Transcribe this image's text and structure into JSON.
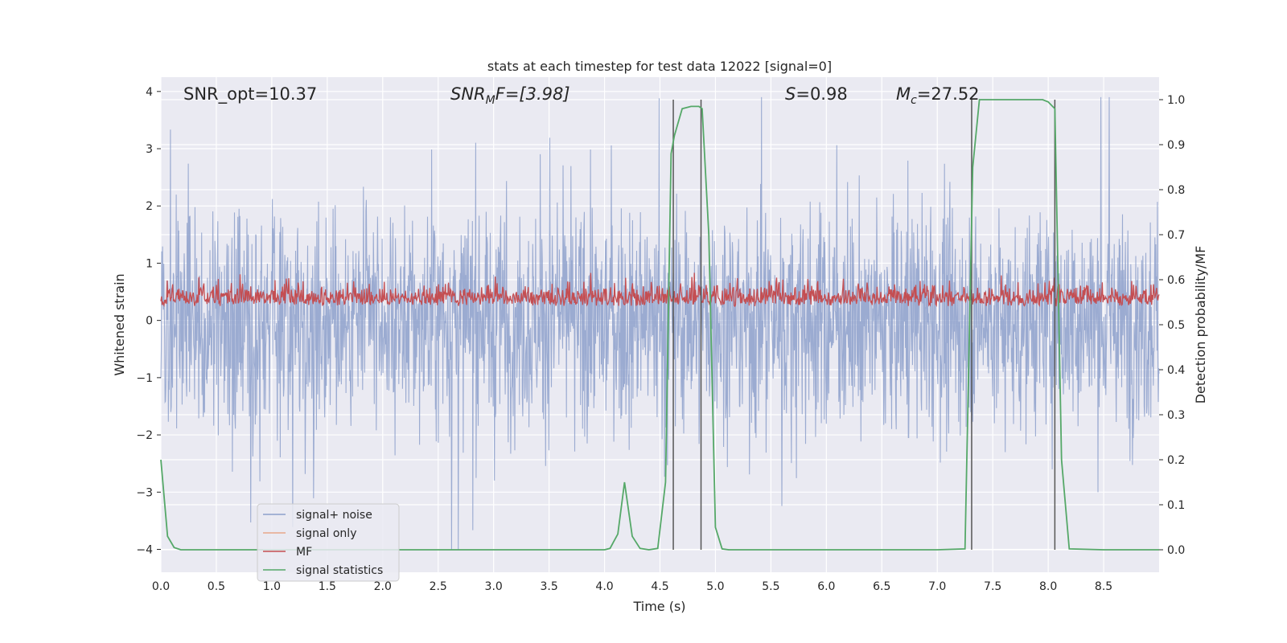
{
  "chart_data": {
    "type": "line",
    "title": "stats at each timestep for test data 12022 [signal=0]",
    "xlabel": "Time (s)",
    "ylabel": "Whitened strain",
    "y2label": "Detection probability/MF",
    "xlim": [
      0,
      9.0
    ],
    "ylim": [
      -4.4,
      4.25
    ],
    "y2lim": [
      -0.05,
      1.05
    ],
    "xticks": [
      "0.0",
      "0.5",
      "1.0",
      "1.5",
      "2.0",
      "2.5",
      "3.0",
      "3.5",
      "4.0",
      "4.5",
      "5.0",
      "5.5",
      "6.0",
      "6.5",
      "7.0",
      "7.5",
      "8.0",
      "8.5"
    ],
    "yticks": [
      "4",
      "3",
      "2",
      "1",
      "0",
      "−1",
      "−2",
      "−3",
      "−4"
    ],
    "y2ticks": [
      "1.0",
      "0.9",
      "0.8",
      "0.7",
      "0.6",
      "0.5",
      "0.4",
      "0.3",
      "0.2",
      "0.1",
      "0.0"
    ],
    "grid": true,
    "legend_position": "lower-left",
    "annotations": {
      "snr_opt": "SNR_opt=10.37",
      "snr_mf_base": "SNR",
      "snr_mf_sub": "M",
      "snr_mf_rest": "F=[3.98]",
      "s_label": "S",
      "s_rest": "=0.98",
      "mc_base": "M",
      "mc_sub": "c",
      "mc_rest": "=27.52"
    },
    "series": [
      {
        "name": "signal+ noise",
        "color": "#8da0cb",
        "axis": "left",
        "description_values": "white noise approx. within [-3.5, 3.0]"
      },
      {
        "name": "signal only",
        "color": "#e8a88a",
        "axis": "left",
        "values": []
      },
      {
        "name": "MF",
        "color": "#c44e52",
        "axis": "right",
        "range_approx": [
          0.5,
          0.62
        ]
      },
      {
        "name": "signal statistics",
        "color": "#55a868",
        "axis": "right",
        "x": [
          0.0,
          0.06,
          0.12,
          0.18,
          0.25,
          0.5,
          1.0,
          2.0,
          3.0,
          4.0,
          4.05,
          4.12,
          4.18,
          4.25,
          4.32,
          4.4,
          4.48,
          4.55,
          4.6,
          4.63,
          4.7,
          4.78,
          4.85,
          4.88,
          4.94,
          5.0,
          5.06,
          5.12,
          6.0,
          7.0,
          7.25,
          7.32,
          7.38,
          7.5,
          7.8,
          7.95,
          8.0,
          8.06,
          8.12,
          8.19,
          8.5,
          9.0
        ],
        "y": [
          0.2,
          0.03,
          0.005,
          0.0,
          0.0,
          0.0,
          0.0,
          0.0,
          0.0,
          0.0,
          0.003,
          0.035,
          0.15,
          0.03,
          0.003,
          0.0,
          0.003,
          0.15,
          0.88,
          0.92,
          0.98,
          0.985,
          0.985,
          0.98,
          0.7,
          0.05,
          0.002,
          0.0,
          0.0,
          0.0,
          0.002,
          0.85,
          1.0,
          1.0,
          1.0,
          1.0,
          0.995,
          0.98,
          0.2,
          0.002,
          0.0,
          0.0
        ]
      }
    ],
    "vertical_lines_x": [
      4.62,
      4.87,
      7.31,
      8.06
    ],
    "vertical_lines_color": "#555555"
  }
}
